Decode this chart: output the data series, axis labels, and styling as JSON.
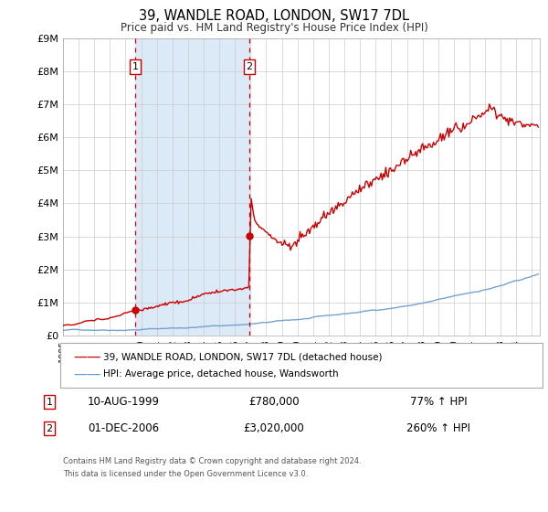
{
  "title": "39, WANDLE ROAD, LONDON, SW17 7DL",
  "subtitle": "Price paid vs. HM Land Registry's House Price Index (HPI)",
  "ylim": [
    0,
    9000000
  ],
  "xlim_start": 1995.0,
  "xlim_end": 2025.5,
  "yticks": [
    0,
    1000000,
    2000000,
    3000000,
    4000000,
    5000000,
    6000000,
    7000000,
    8000000,
    9000000
  ],
  "ytick_labels": [
    "£0",
    "£1M",
    "£2M",
    "£3M",
    "£4M",
    "£5M",
    "£6M",
    "£7M",
    "£8M",
    "£9M"
  ],
  "sale1_date": 1999.61,
  "sale1_price": 780000,
  "sale1_label": "1",
  "sale1_date_str": "10-AUG-1999",
  "sale1_price_str": "£780,000",
  "sale1_pct": "77% ↑ HPI",
  "sale2_date": 2006.92,
  "sale2_price": 3020000,
  "sale2_label": "2",
  "sale2_date_str": "01-DEC-2006",
  "sale2_price_str": "£3,020,000",
  "sale2_pct": "260% ↑ HPI",
  "shaded_region_color": "#dce9f7",
  "red_line_color": "#cc0000",
  "blue_line_color": "#6699cc",
  "dashed_line_color": "#cc0000",
  "grid_color": "#cccccc",
  "background_color": "#ffffff",
  "legend1_label": "39, WANDLE ROAD, LONDON, SW17 7DL (detached house)",
  "legend2_label": "HPI: Average price, detached house, Wandsworth",
  "footnote1": "Contains HM Land Registry data © Crown copyright and database right 2024.",
  "footnote2": "This data is licensed under the Open Government Licence v3.0."
}
